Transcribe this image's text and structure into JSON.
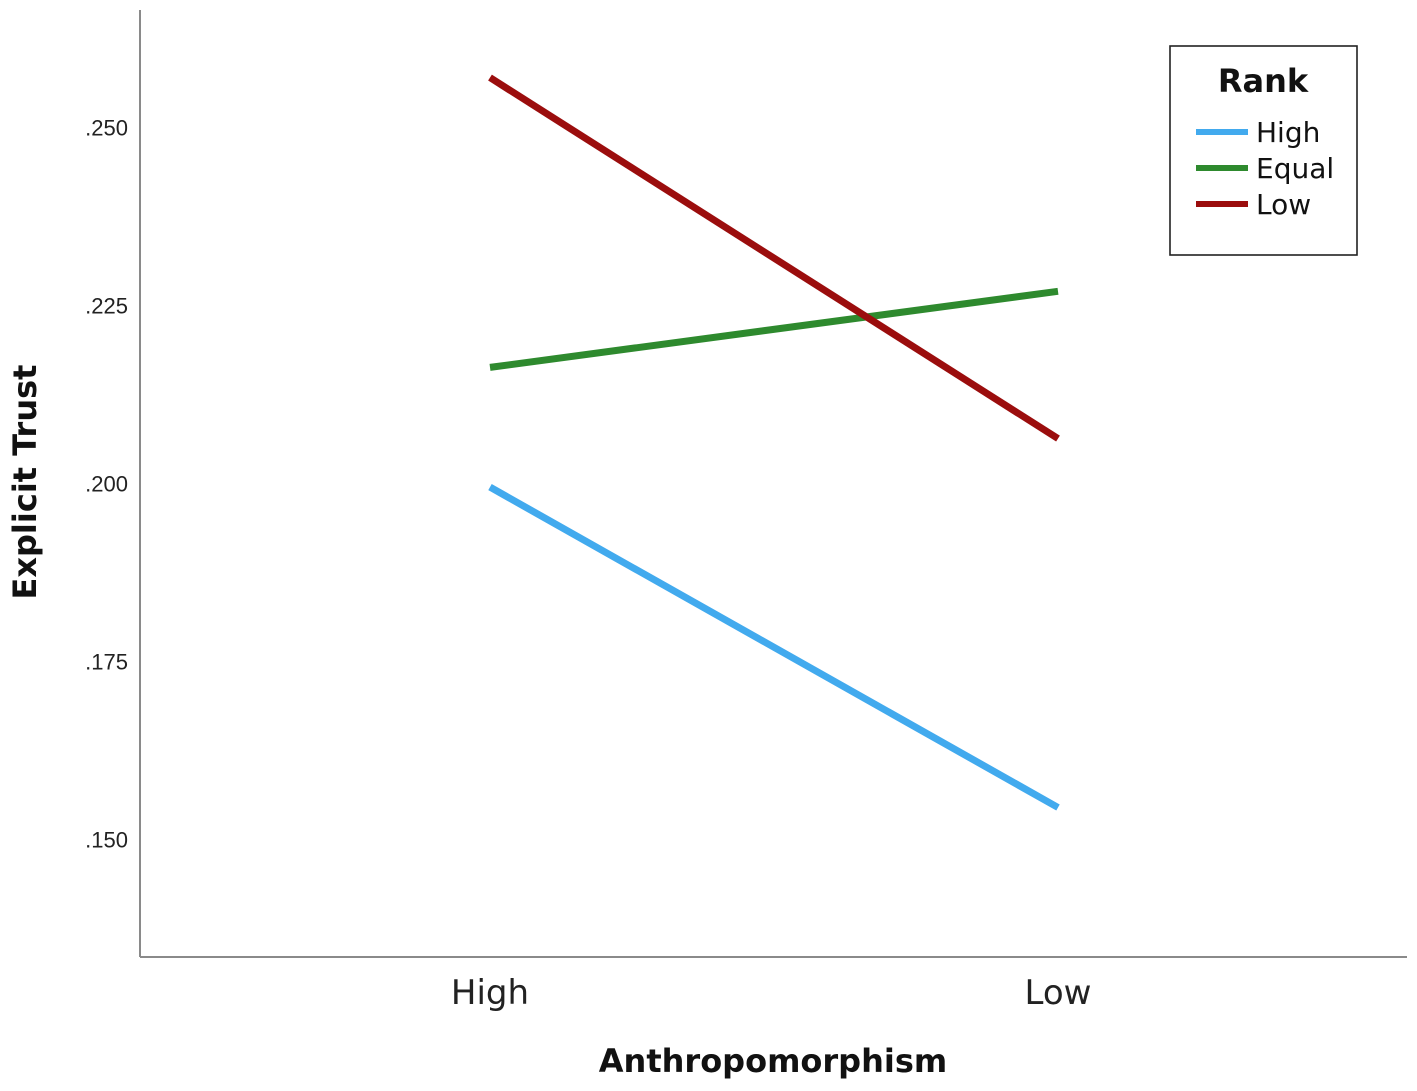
{
  "chart_data": {
    "type": "line",
    "categories": [
      "High",
      "Low"
    ],
    "xlabel": "Anthropomorphism",
    "ylabel": "Explicit Trust",
    "ylim": [
      0.1335,
      0.2665
    ],
    "yticks": [
      0.15,
      0.175,
      0.2,
      0.225,
      0.25
    ],
    "ytick_labels": [
      ".150",
      ".175",
      ".200",
      ".225",
      ".250"
    ],
    "grid": false,
    "legend": {
      "title": "Rank",
      "placement": "top-right"
    },
    "series": [
      {
        "name": "High",
        "color": "#42aaee",
        "values": [
          0.1995,
          0.1545
        ]
      },
      {
        "name": "Equal",
        "color": "#2e8a2e",
        "values": [
          0.2163,
          0.227
        ]
      },
      {
        "name": "Low",
        "color": "#9b0d0d",
        "values": [
          0.257,
          0.2063
        ]
      }
    ]
  }
}
